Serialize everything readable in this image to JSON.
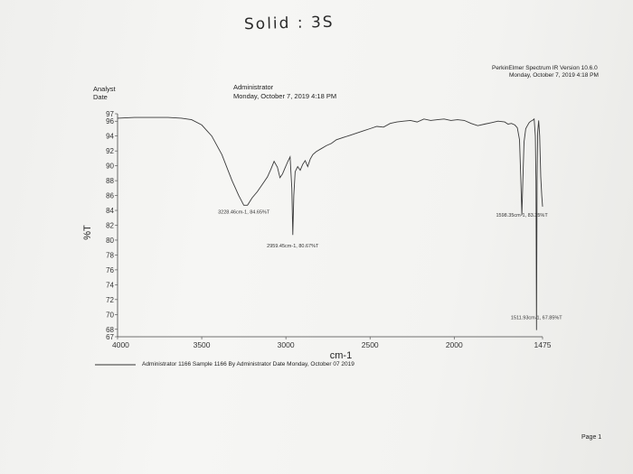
{
  "handwritten_title": "Solid : 3S",
  "header": {
    "software": "PerkinElmer Spectrum IR Version 10.6.0",
    "software_date": "Monday, October 7, 2019 4:18 PM",
    "analyst_label": "Analyst",
    "date_label": "Date",
    "analyst_value": "Administrator",
    "date_value": "Monday, October 7, 2019 4:18 PM"
  },
  "footer": {
    "legend_text": "Administrator 1166     Sample 1166 By Administrator Date Monday, October 07 2019",
    "page": "Page 1"
  },
  "colors": {
    "line": "#3a3a3a",
    "paper": "#f4f4f2"
  },
  "chart_data": {
    "type": "line",
    "xlabel": "cm-1",
    "ylabel": "%T",
    "x_reversed": true,
    "xlim": [
      4000,
      1475
    ],
    "ylim": [
      67,
      97
    ],
    "x_ticks": [
      {
        "value": 4000,
        "label": "4000"
      },
      {
        "value": 3500,
        "label": "3500"
      },
      {
        "value": 3000,
        "label": "3000"
      },
      {
        "value": 2500,
        "label": "2500"
      },
      {
        "value": 2000,
        "label": "2000"
      },
      {
        "value": 1475,
        "label": "1475"
      }
    ],
    "y_ticks": [
      97,
      96,
      94,
      92,
      90,
      88,
      86,
      84,
      82,
      80,
      78,
      76,
      74,
      72,
      70,
      68,
      67
    ],
    "series": [
      {
        "x": [
          4000,
          3900,
          3800,
          3700,
          3620,
          3560,
          3500,
          3440,
          3380,
          3320,
          3280,
          3250,
          3228,
          3200,
          3170,
          3140,
          3110,
          3090,
          3070,
          3050,
          3035,
          3020,
          3005,
          2990,
          2975,
          2965,
          2959,
          2953,
          2945,
          2930,
          2915,
          2900,
          2885,
          2870,
          2855,
          2840,
          2820,
          2790,
          2760,
          2730,
          2700,
          2660,
          2620,
          2580,
          2540,
          2500,
          2460,
          2420,
          2380,
          2340,
          2300,
          2260,
          2220,
          2180,
          2140,
          2100,
          2060,
          2020,
          1980,
          1940,
          1900,
          1860,
          1820,
          1780,
          1740,
          1700,
          1680,
          1660,
          1640,
          1625,
          1612,
          1604,
          1598,
          1592,
          1585,
          1575,
          1565,
          1555,
          1545,
          1535,
          1525,
          1518,
          1514,
          1511,
          1508,
          1504,
          1498,
          1492,
          1486,
          1480,
          1475
        ],
        "y": [
          96.4,
          96.5,
          96.5,
          96.5,
          96.4,
          96.2,
          95.5,
          94,
          91.5,
          88,
          86,
          84.7,
          84.7,
          85.7,
          86.5,
          87.5,
          88.5,
          89.5,
          90.6,
          89.8,
          88.4,
          88.9,
          89.7,
          90.5,
          91.2,
          87,
          80.7,
          86,
          89.2,
          89.9,
          89.4,
          90.2,
          90.7,
          89.9,
          90.9,
          91.5,
          91.9,
          92.3,
          92.7,
          93,
          93.5,
          93.8,
          94.1,
          94.4,
          94.7,
          95,
          95.3,
          95.2,
          95.7,
          95.9,
          96,
          96.1,
          95.9,
          96.3,
          96.1,
          96.2,
          96.3,
          96.1,
          96.2,
          96.1,
          95.7,
          95.4,
          95.6,
          95.8,
          96,
          95.9,
          95.6,
          95.7,
          95.5,
          95.1,
          93.5,
          88,
          83.4,
          88,
          93.2,
          95,
          95.4,
          95.8,
          96,
          96.1,
          96.3,
          94,
          88,
          67.9,
          88,
          94.5,
          96.1,
          94,
          88.5,
          86,
          84.5
        ]
      }
    ],
    "annotations": [
      {
        "x": 3228,
        "y": 84.7,
        "text": "3228.46cm-1, 84.65%T"
      },
      {
        "x": 2959,
        "y": 80.7,
        "text": "2959.45cm-1, 80.67%T"
      },
      {
        "x": 1598,
        "y": 83.4,
        "text": "1598.35cm-1, 83.35%T"
      },
      {
        "x": 1511,
        "y": 67.9,
        "text": "1511.93cm-1, 67.85%T"
      }
    ]
  }
}
